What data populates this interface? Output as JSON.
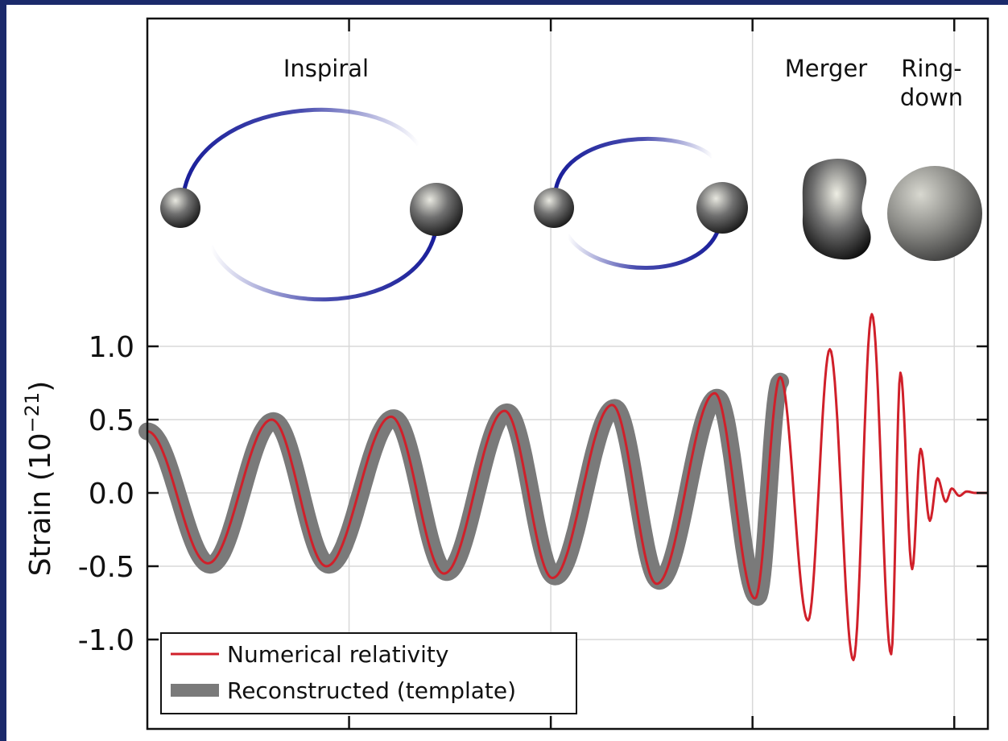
{
  "colors": {
    "background": "#1b2a6b",
    "plot_background": "#ffffff",
    "nr_line": "#d0202a",
    "template_band": "#7a7a7a",
    "orbit": "#1a1f9a",
    "grid": "#d8d8d8"
  },
  "stages": {
    "inspiral": "Inspiral",
    "merger": "Merger",
    "ringdown_line1": "Ring-",
    "ringdown_line2": "down"
  },
  "legend": {
    "numerical": "Numerical relativity",
    "reconstructed": "Reconstructed (template)"
  },
  "chart_data": {
    "type": "line",
    "ylabel": "Strain (10",
    "ylabel_exp": "−21",
    "ylabel_close": ")",
    "ylim": [
      -1.5,
      1.2
    ],
    "xlim": [
      0,
      1
    ],
    "y_ticks": [
      {
        "value": 1.0,
        "label": "1.0"
      },
      {
        "value": 0.5,
        "label": "0.5"
      },
      {
        "value": 0.0,
        "label": "0.0"
      },
      {
        "value": -0.5,
        "label": "-0.5"
      },
      {
        "value": -1.0,
        "label": "-1.0"
      }
    ],
    "x_ticks": [
      0.24,
      0.48,
      0.72,
      0.96
    ],
    "grid": true,
    "legend_position": "bottom-left",
    "series": [
      {
        "name": "Numerical relativity",
        "style": "line",
        "x": [
          0.0,
          0.072,
          0.148,
          0.213,
          0.29,
          0.353,
          0.425,
          0.482,
          0.553,
          0.606,
          0.675,
          0.723,
          0.753,
          0.786,
          0.812,
          0.84,
          0.862,
          0.885,
          0.896,
          0.91,
          0.92,
          0.931,
          0.94,
          0.95,
          0.957,
          0.966,
          0.975,
          0.985,
          0.995,
          1.0
        ],
        "y": [
          0.42,
          -0.48,
          0.5,
          -0.5,
          0.52,
          -0.55,
          0.56,
          -0.58,
          0.6,
          -0.62,
          0.68,
          -0.72,
          0.79,
          -0.87,
          0.98,
          -1.14,
          1.22,
          -1.1,
          0.82,
          -0.52,
          0.3,
          -0.19,
          0.1,
          -0.06,
          0.03,
          -0.02,
          0.01,
          0.0,
          0.0,
          0.0
        ]
      },
      {
        "name": "Reconstructed (template)",
        "style": "band",
        "x": [
          0.0,
          0.075,
          0.15,
          0.216,
          0.293,
          0.356,
          0.428,
          0.485,
          0.556,
          0.609,
          0.678,
          0.726,
          0.753
        ],
        "y": [
          0.42,
          -0.49,
          0.49,
          -0.49,
          0.51,
          -0.54,
          0.55,
          -0.57,
          0.58,
          -0.6,
          0.65,
          -0.71,
          0.76
        ]
      }
    ]
  }
}
